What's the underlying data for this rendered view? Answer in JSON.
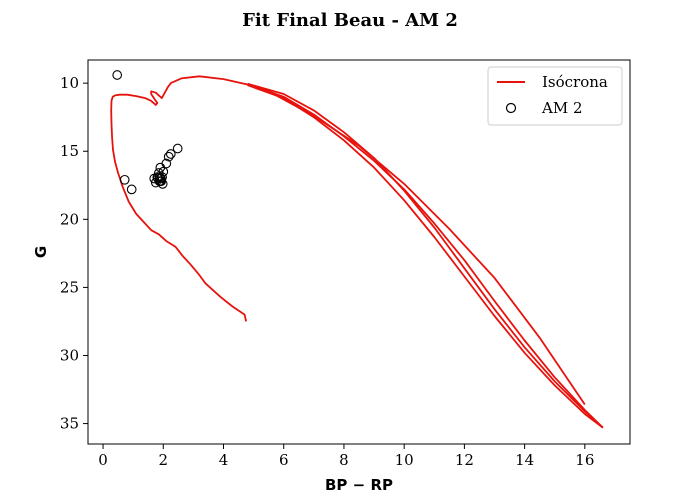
{
  "chart_data": {
    "type": "line",
    "title": "Fit Final Beau - AM 2",
    "xlabel": "BP − RP",
    "ylabel": "G",
    "xlim": [
      -0.5,
      17.5
    ],
    "ylim": [
      36.5,
      8.3
    ],
    "y_inverted": true,
    "xticks": [
      0,
      2,
      4,
      6,
      8,
      10,
      12,
      14,
      16
    ],
    "yticks": [
      10,
      15,
      20,
      25,
      30,
      35
    ],
    "grid": false,
    "legend": {
      "position": "top-right",
      "entries": [
        "Isócrona",
        "AM 2"
      ]
    },
    "series": [
      {
        "name": "Isócrona",
        "kind": "line",
        "color": "#e8120c",
        "branches": [
          {
            "x": [
              4.75,
              4.7,
              4.3,
              3.9,
              3.4,
              3.2,
              2.9,
              2.65,
              2.4,
              2.1,
              1.85,
              1.6,
              1.35,
              1.1,
              0.85,
              0.65,
              0.5,
              0.4,
              0.33,
              0.3,
              0.28,
              0.27,
              0.28,
              0.32,
              0.4,
              0.55,
              0.8,
              1.1,
              1.4,
              1.6,
              1.75,
              1.8,
              1.72,
              1.6,
              1.6,
              1.75,
              1.85,
              1.95,
              2.05,
              2.15,
              2.25,
              2.6,
              3.2,
              4.0,
              5.0,
              6.0,
              7.0,
              8.0,
              9.0,
              10.0,
              11.0,
              12.0,
              13.0,
              14.0,
              15.0,
              16.0,
              16.6
            ],
            "y": [
              27.5,
              27.0,
              26.4,
              25.7,
              24.7,
              24.1,
              23.3,
              22.7,
              22.0,
              21.6,
              21.1,
              20.8,
              20.2,
              19.6,
              18.7,
              17.6,
              16.6,
              15.8,
              14.9,
              14.0,
              13.0,
              12.0,
              11.3,
              11.0,
              10.9,
              10.85,
              10.85,
              10.95,
              11.1,
              11.3,
              11.6,
              11.45,
              11.2,
              10.8,
              10.6,
              10.7,
              10.9,
              11.1,
              10.7,
              10.3,
              10.0,
              9.65,
              9.5,
              9.7,
              10.2,
              11.0,
              12.3,
              13.9,
              15.7,
              17.8,
              20.3,
              23.0,
              26.0,
              28.9,
              31.6,
              34.0,
              35.3
            ]
          },
          {
            "x": [
              4.8,
              6.0,
              7.0,
              8.0,
              9.0,
              10.0,
              11.0,
              12.0,
              13.0,
              14.0,
              15.0,
              16.0,
              16.6
            ],
            "y": [
              10.05,
              10.8,
              12.0,
              13.6,
              15.5,
              17.9,
              20.6,
              23.6,
              26.6,
              29.4,
              31.9,
              34.1,
              35.3
            ]
          },
          {
            "x": [
              4.8,
              6.0,
              7.0,
              8.0,
              9.0,
              10.0,
              11.0,
              12.0,
              13.0,
              14.0,
              15.0,
              16.0,
              16.6
            ],
            "y": [
              10.15,
              11.1,
              12.5,
              14.2,
              16.2,
              18.6,
              21.3,
              24.2,
              27.1,
              29.8,
              32.2,
              34.3,
              35.3
            ]
          },
          {
            "x": [
              5.5,
              7.0,
              8.5,
              10.0,
              11.5,
              13.0,
              14.5,
              16.0
            ],
            "y": [
              10.6,
              12.4,
              14.6,
              17.4,
              20.7,
              24.3,
              28.7,
              33.6
            ]
          }
        ]
      },
      {
        "name": "AM 2",
        "kind": "scatter",
        "marker": "open-circle",
        "color": "#000000",
        "x": [
          0.47,
          0.72,
          0.95,
          1.7,
          1.75,
          1.8,
          1.82,
          1.85,
          1.87,
          1.9,
          1.93,
          1.96,
          1.98,
          1.88,
          1.9,
          1.92,
          2.0,
          2.1,
          2.18,
          2.25,
          2.48
        ],
        "y": [
          9.4,
          17.1,
          17.8,
          17.0,
          17.3,
          16.9,
          17.0,
          16.6,
          17.2,
          16.2,
          17.2,
          16.9,
          17.4,
          16.9,
          17.2,
          17.0,
          16.5,
          15.9,
          15.4,
          15.2,
          14.8
        ]
      }
    ]
  }
}
